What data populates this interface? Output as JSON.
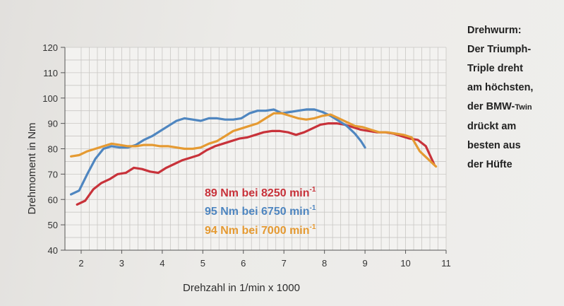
{
  "chart_data": {
    "type": "line",
    "xlabel": "Drehzahl in 1/min x 1000",
    "ylabel": "Drehmoment in Nm",
    "xlim": [
      1.6,
      11
    ],
    "ylim": [
      40,
      120
    ],
    "x_ticks": [
      2,
      3,
      4,
      5,
      6,
      7,
      8,
      9,
      10,
      11
    ],
    "y_ticks": [
      40,
      50,
      60,
      70,
      80,
      90,
      100,
      110,
      120
    ],
    "grid": true,
    "series": [
      {
        "color": "#c8323a",
        "x": [
          1.9,
          2.1,
          2.3,
          2.5,
          2.7,
          2.9,
          3.1,
          3.3,
          3.5,
          3.7,
          3.9,
          4.1,
          4.3,
          4.5,
          4.7,
          4.9,
          5.1,
          5.3,
          5.5,
          5.7,
          5.9,
          6.1,
          6.3,
          6.5,
          6.7,
          6.9,
          7.1,
          7.3,
          7.5,
          7.7,
          7.9,
          8.1,
          8.3,
          8.5,
          8.7,
          8.9,
          9.1,
          9.3,
          9.5,
          9.7,
          9.9,
          10.1,
          10.3,
          10.5,
          10.7
        ],
        "y": [
          58,
          59.5,
          64,
          66.5,
          68,
          70,
          70.5,
          72.5,
          72,
          71,
          70.5,
          72.5,
          74,
          75.5,
          76.5,
          77.5,
          79.5,
          81,
          82,
          83,
          84,
          84.5,
          85.5,
          86.5,
          87,
          87,
          86.5,
          85.5,
          86.5,
          88,
          89.5,
          90,
          90,
          89.5,
          88.5,
          87.5,
          87,
          86.5,
          86.5,
          86,
          85,
          84,
          83.5,
          81,
          74
        ]
      },
      {
        "color": "#4f86c0",
        "x": [
          1.75,
          1.95,
          2.15,
          2.35,
          2.55,
          2.75,
          2.95,
          3.15,
          3.35,
          3.55,
          3.75,
          3.95,
          4.15,
          4.35,
          4.55,
          4.75,
          4.95,
          5.15,
          5.35,
          5.55,
          5.75,
          5.95,
          6.15,
          6.35,
          6.55,
          6.75,
          6.95,
          7.15,
          7.35,
          7.55,
          7.75,
          7.95,
          8.15,
          8.35,
          8.55,
          8.75,
          8.9,
          9.0
        ],
        "y": [
          62,
          63.5,
          70,
          76,
          80,
          81,
          80.5,
          80.5,
          81.5,
          83.5,
          85,
          87,
          89,
          91,
          92,
          91.5,
          91,
          92,
          92,
          91.5,
          91.5,
          92,
          94,
          95,
          95,
          95.5,
          94,
          94.5,
          95,
          95.5,
          95.5,
          94.5,
          93,
          91,
          89,
          86,
          83,
          80.5
        ]
      },
      {
        "color": "#e59a32",
        "x": [
          1.75,
          1.95,
          2.15,
          2.35,
          2.55,
          2.75,
          2.95,
          3.15,
          3.35,
          3.55,
          3.75,
          3.95,
          4.15,
          4.35,
          4.55,
          4.75,
          4.95,
          5.15,
          5.35,
          5.55,
          5.75,
          5.95,
          6.15,
          6.35,
          6.55,
          6.75,
          6.95,
          7.15,
          7.35,
          7.55,
          7.75,
          7.95,
          8.15,
          8.35,
          8.55,
          8.75,
          8.95,
          9.15,
          9.35,
          9.55,
          9.75,
          9.95,
          10.15,
          10.35,
          10.55,
          10.75
        ],
        "y": [
          77,
          77.5,
          79,
          80,
          81,
          82,
          81.5,
          81,
          81,
          81.5,
          81.5,
          81,
          81,
          80.5,
          80,
          80,
          80.5,
          82,
          83,
          85,
          87,
          88,
          89,
          90,
          92,
          94,
          94,
          93,
          92,
          91.5,
          92,
          93,
          93.5,
          92,
          90.5,
          89,
          88.5,
          87.5,
          86.5,
          86.5,
          86,
          85.5,
          84.5,
          79,
          76,
          73
        ]
      }
    ],
    "annotations": [
      {
        "text": "89 Nm bei 8250 min",
        "sup": "-1",
        "color": "#c8323a"
      },
      {
        "text": "95 Nm bei 6750 min",
        "sup": "-1",
        "color": "#4f86c0"
      },
      {
        "text": "94 Nm bei 7000 min",
        "sup": "-1",
        "color": "#e59a32"
      }
    ]
  },
  "caption": {
    "lines": [
      "Drehwurm:",
      "Der Triumph-",
      "Triple dreht",
      "am höchsten,"
    ],
    "line5_main": "der BMW-",
    "line5_small": "Twin",
    "lines_after": [
      "drückt am",
      "besten aus",
      "der Hüfte"
    ]
  }
}
